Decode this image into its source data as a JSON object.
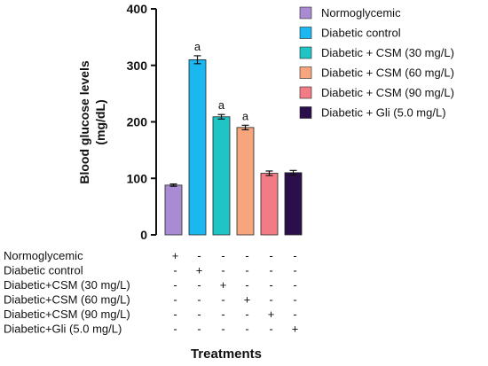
{
  "chart_data": {
    "type": "bar",
    "ylabel_lines": [
      "Blood glucose levels",
      "(mg/dL)"
    ],
    "xlabel": "Treatments",
    "ylim": [
      0,
      400
    ],
    "yticks": [
      0,
      100,
      200,
      300,
      400
    ],
    "legend_position": "top-right",
    "series": [
      {
        "name": "Normoglycemic",
        "value": 88,
        "error": 2,
        "color": "#a98bd4",
        "sig": ""
      },
      {
        "name": "Diabetic control",
        "value": 310,
        "error": 7,
        "color": "#1ab7f0",
        "sig": "a"
      },
      {
        "name": "Diabetic + CSM (30 mg/L)",
        "value": 209,
        "error": 4,
        "color": "#1fc5c5",
        "sig": "a"
      },
      {
        "name": "Diabetic + CSM (60 mg/L)",
        "value": 190,
        "error": 4,
        "color": "#f7a57c",
        "sig": "a"
      },
      {
        "name": "Diabetic + CSM (90 mg/L)",
        "value": 109,
        "error": 4,
        "color": "#f27c86",
        "sig": ""
      },
      {
        "name": "Diabetic + Gli (5.0 mg/L)",
        "value": 110,
        "error": 4,
        "color": "#2b0f4a",
        "sig": ""
      }
    ],
    "table_rows": [
      {
        "label": "Normoglycemic",
        "signs": [
          "+",
          "-",
          "-",
          "-",
          "-",
          "-"
        ]
      },
      {
        "label": "Diabetic control",
        "signs": [
          "-",
          "+",
          "-",
          "-",
          "-",
          "-"
        ]
      },
      {
        "label": "Diabetic+CSM (30 mg/L)",
        "signs": [
          "-",
          "-",
          "+",
          "-",
          "-",
          "-"
        ]
      },
      {
        "label": "Diabetic+CSM (60 mg/L)",
        "signs": [
          "-",
          "-",
          "-",
          "+",
          "-",
          "-"
        ]
      },
      {
        "label": "Diabetic+CSM (90 mg/L)",
        "signs": [
          "-",
          "-",
          "-",
          "-",
          "+",
          "-"
        ]
      },
      {
        "label": "Diabetic+Gli (5.0 mg/L)",
        "signs": [
          "-",
          "-",
          "-",
          "-",
          "-",
          "+"
        ]
      }
    ]
  }
}
